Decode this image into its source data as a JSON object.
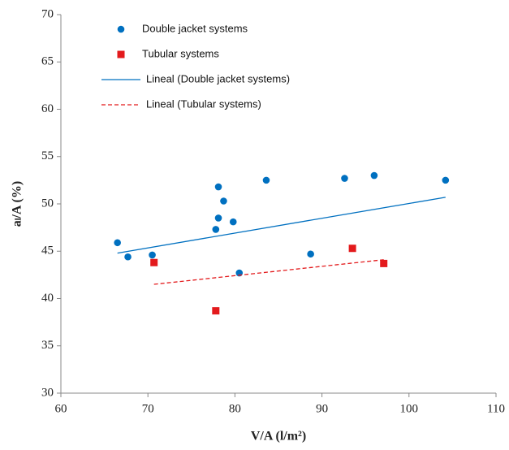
{
  "chart_data": {
    "type": "scatter",
    "x_label": "V/A (l/m²)",
    "y_label": "aₗ/A  (%)",
    "xlim": [
      60,
      110
    ],
    "xticks": [
      60,
      70,
      80,
      90,
      100,
      110
    ],
    "ylim": [
      30,
      70
    ],
    "yticks": [
      30,
      35,
      40,
      45,
      50,
      55,
      60,
      65,
      70
    ],
    "series": [
      {
        "name": "Double jacket systems",
        "color": "#0070c0",
        "marker": "circle",
        "x": [
          66.5,
          67.7,
          70.5,
          77.8,
          78.1,
          78.1,
          78.7,
          79.8,
          80.5,
          83.6,
          88.7,
          92.6,
          96.0,
          104.2
        ],
        "values": [
          45.9,
          44.4,
          44.6,
          47.3,
          48.5,
          51.8,
          50.3,
          48.1,
          42.7,
          52.5,
          44.7,
          52.7,
          53.0,
          52.5
        ]
      },
      {
        "name": "Tubular systems",
        "color": "#e31a1c",
        "marker": "square",
        "x": [
          70.7,
          77.8,
          93.5,
          97.1
        ],
        "values": [
          43.8,
          38.7,
          45.3,
          43.7
        ]
      },
      {
        "name": "Lineal (Double jacket systems)",
        "color": "#0070c0",
        "marker": "line",
        "dash": "solid",
        "x": [
          66.5,
          104.2
        ],
        "values": [
          44.8,
          50.7
        ]
      },
      {
        "name": "Lineal (Tubular systems)",
        "color": "#e31a1c",
        "marker": "line",
        "dash": "dashed",
        "x": [
          70.7,
          97.1
        ],
        "values": [
          41.5,
          44.1
        ]
      }
    ]
  }
}
